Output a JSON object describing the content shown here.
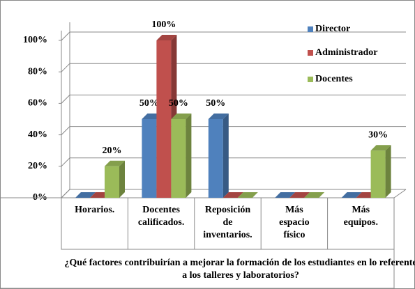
{
  "chart_data": {
    "type": "bar3d",
    "x_label": "¿Qué factores contribuirían a mejorar la formación de los estudiantes en lo referente a los talleres y laboratorios?",
    "categories": [
      "Horarios.",
      "Docentes calificados.",
      "Reposición de inventarios.",
      "Más espacio físico",
      "Más equipos."
    ],
    "series": [
      {
        "name": "Director",
        "color": "#4f81bd",
        "values": [
          0,
          50,
          50,
          0,
          0
        ],
        "value_labels": [
          null,
          "50%",
          "50%",
          null,
          null
        ]
      },
      {
        "name": "Administrador",
        "color": "#c0504d",
        "values": [
          0,
          100,
          0,
          0,
          0
        ],
        "value_labels": [
          null,
          "100%",
          null,
          null,
          null
        ]
      },
      {
        "name": "Docentes",
        "color": "#9bbb59",
        "values": [
          20,
          50,
          0,
          0,
          30
        ],
        "value_labels": [
          "20%",
          "50%",
          null,
          null,
          "30%"
        ]
      }
    ],
    "ylim": [
      0,
      100
    ],
    "yticks": [
      {
        "value": 0,
        "label": "0%"
      },
      {
        "value": 20,
        "label": "20%"
      },
      {
        "value": 40,
        "label": "40%"
      },
      {
        "value": 60,
        "label": "60%"
      },
      {
        "value": 80,
        "label": "80%"
      },
      {
        "value": 100,
        "label": "100%"
      }
    ],
    "grid": true,
    "legend": "top-right"
  }
}
